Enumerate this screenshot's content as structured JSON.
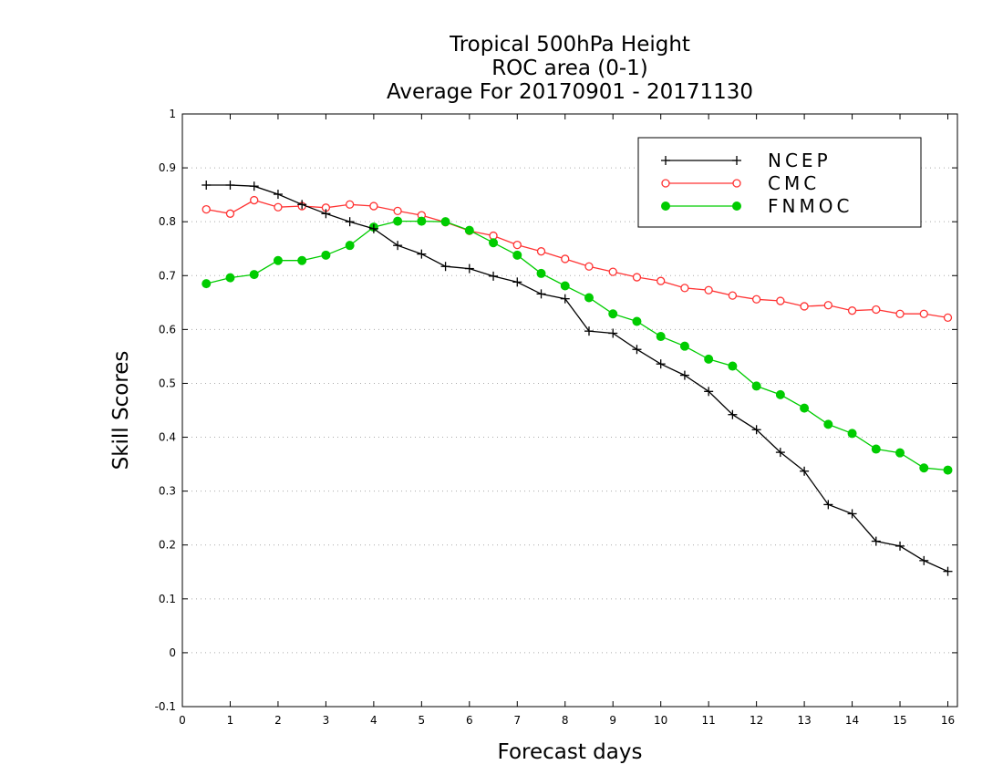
{
  "chart_data": {
    "type": "line",
    "title": [
      "Tropical 500hPa Height",
      "ROC area (0-1)",
      "Average For 20170901 - 20171130"
    ],
    "xlabel": "Forecast days",
    "ylabel": "Skill Scores",
    "xlim": [
      0,
      16.2
    ],
    "ylim": [
      -0.1,
      1
    ],
    "xticks": [
      0,
      1,
      2,
      3,
      4,
      5,
      6,
      7,
      8,
      9,
      10,
      11,
      12,
      13,
      14,
      15,
      16
    ],
    "yticks": [
      -0.1,
      0,
      0.1,
      0.2,
      0.3,
      0.4,
      0.5,
      0.6,
      0.7,
      0.8,
      0.9,
      1
    ],
    "ytick_labels": [
      "-0.1",
      "0",
      "0.1",
      "0.2",
      "0.3",
      "0.4",
      "0.5",
      "0.6",
      "0.7",
      "0.8",
      "0.9",
      "1"
    ],
    "grid": true,
    "legend_position": "top-right",
    "x": [
      0.5,
      1,
      1.5,
      2,
      2.5,
      3,
      3.5,
      4,
      4.5,
      5,
      5.5,
      6,
      6.5,
      7,
      7.5,
      8,
      8.5,
      9,
      9.5,
      10,
      10.5,
      11,
      11.5,
      12,
      12.5,
      13,
      13.5,
      14,
      14.5,
      15,
      15.5,
      16
    ],
    "series": [
      {
        "name": "NCEP",
        "color": "#000000",
        "marker": "plus",
        "values": [
          0.868,
          0.868,
          0.866,
          0.851,
          0.832,
          0.815,
          0.8,
          0.787,
          0.756,
          0.74,
          0.717,
          0.713,
          0.699,
          0.688,
          0.666,
          0.657,
          0.597,
          0.593,
          0.563,
          0.536,
          0.515,
          0.485,
          0.442,
          0.414,
          0.372,
          0.337,
          0.275,
          0.258,
          0.207,
          0.198,
          0.171,
          0.151
        ]
      },
      {
        "name": "CMC",
        "color": "#ff3333",
        "marker": "open-circle",
        "values": [
          0.823,
          0.815,
          0.84,
          0.827,
          0.829,
          0.826,
          0.832,
          0.829,
          0.82,
          0.812,
          0.799,
          0.783,
          0.774,
          0.757,
          0.745,
          0.731,
          0.717,
          0.707,
          0.697,
          0.69,
          0.677,
          0.673,
          0.663,
          0.656,
          0.653,
          0.643,
          0.645,
          0.635,
          0.637,
          0.629,
          0.629,
          0.622
        ]
      },
      {
        "name": "FNMOC",
        "color": "#00cc00",
        "marker": "filled-circle",
        "values": [
          0.685,
          0.696,
          0.702,
          0.728,
          0.728,
          0.738,
          0.756,
          0.79,
          0.801,
          0.801,
          0.8,
          0.784,
          0.761,
          0.738,
          0.704,
          0.681,
          0.659,
          0.629,
          0.615,
          0.587,
          0.569,
          0.545,
          0.532,
          0.495,
          0.479,
          0.454,
          0.424,
          0.407,
          0.378,
          0.371,
          0.343,
          0.339
        ]
      }
    ]
  }
}
